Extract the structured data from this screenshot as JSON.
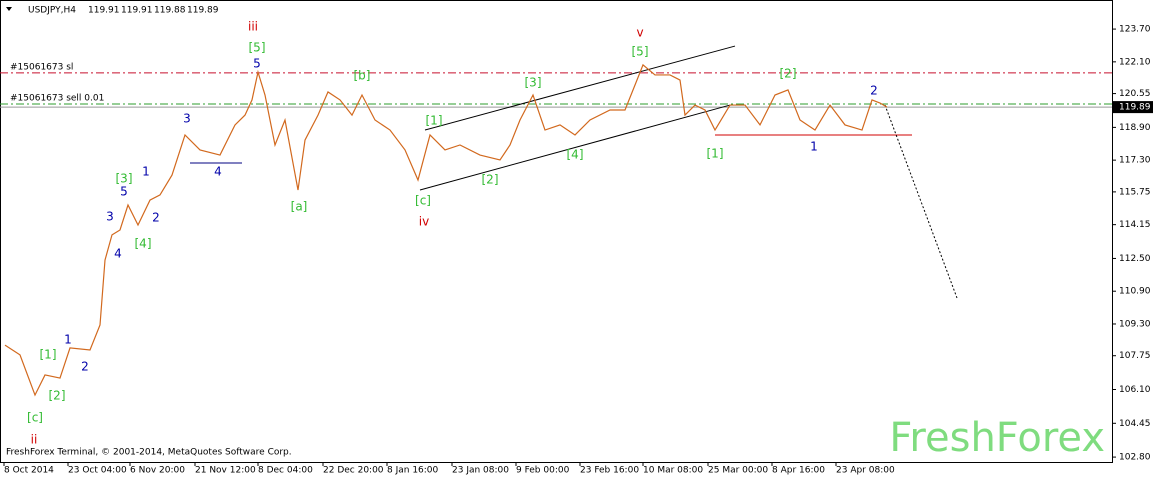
{
  "chart_data": {
    "type": "line",
    "title": "USDJPY,H4",
    "ohlc": [
      119.91,
      119.91,
      119.88,
      119.89
    ],
    "footer": "FreshForex Terminal, © 2001-2014, MetaQuotes Software Corp.",
    "watermark": "FreshForex",
    "xlim": [
      0,
      1112
    ],
    "ylim": [
      102.56,
      125.12
    ],
    "xticks": [
      {
        "value": 4,
        "label": "8 Oct 2014"
      },
      {
        "value": 68,
        "label": "23 Oct 04:00"
      },
      {
        "value": 130,
        "label": "6 Nov 20:00"
      },
      {
        "value": 195,
        "label": "21 Nov 12:00"
      },
      {
        "value": 258,
        "label": "8 Dec 04:00"
      },
      {
        "value": 323,
        "label": "22 Dec 20:00"
      },
      {
        "value": 387,
        "label": "8 Jan 16:00"
      },
      {
        "value": 452,
        "label": "23 Jan 08:00"
      },
      {
        "value": 516,
        "label": "9 Feb 00:00"
      },
      {
        "value": 580,
        "label": "23 Feb 16:00"
      },
      {
        "value": 643,
        "label": "10 Mar 08:00"
      },
      {
        "value": 708,
        "label": "25 Mar 00:00"
      },
      {
        "value": 772,
        "label": "8 Apr 16:00"
      },
      {
        "value": 836,
        "label": "23 Apr 08:00"
      }
    ],
    "yticks": [
      {
        "value": 102.8,
        "label": "102.80"
      },
      {
        "value": 104.45,
        "label": "104.45"
      },
      {
        "value": 106.1,
        "label": "106.10"
      },
      {
        "value": 107.75,
        "label": "107.75"
      },
      {
        "value": 109.3,
        "label": "109.30"
      },
      {
        "value": 110.9,
        "label": "110.90"
      },
      {
        "value": 112.5,
        "label": "112.50"
      },
      {
        "value": 114.15,
        "label": "114.15"
      },
      {
        "value": 115.75,
        "label": "115.75"
      },
      {
        "value": 117.3,
        "label": "117.30"
      },
      {
        "value": 118.9,
        "label": "118.90"
      },
      {
        "value": 120.55,
        "label": "120.55"
      },
      {
        "value": 122.1,
        "label": "122.10"
      },
      {
        "value": 123.7,
        "label": "123.70"
      }
    ],
    "last_price": 119.89,
    "series": [
      {
        "color": "#d2691e",
        "x": [
          5,
          20,
          35,
          45,
          60,
          70,
          90,
          100,
          105,
          112,
          120,
          128,
          138,
          150,
          160,
          172,
          185,
          200,
          220,
          235,
          245,
          252,
          258,
          265,
          275,
          285,
          298,
          305,
          318,
          328,
          340,
          352,
          362,
          375,
          390,
          405,
          418,
          430,
          445,
          460,
          480,
          500,
          510,
          520,
          533,
          545,
          560,
          575,
          590,
          610,
          625,
          635,
          643,
          655,
          670,
          680,
          685,
          695,
          705,
          715,
          730,
          745,
          760,
          775,
          788,
          800,
          815,
          830,
          845,
          862,
          872,
          880,
          887
        ],
        "values": [
          108.27,
          107.79,
          105.83,
          106.81,
          106.66,
          108.13,
          108.03,
          109.25,
          112.42,
          113.65,
          113.89,
          115.11,
          114.13,
          115.35,
          115.6,
          116.57,
          118.53,
          117.8,
          117.55,
          119.02,
          119.5,
          120.24,
          121.6,
          120.48,
          118.04,
          119.26,
          115.84,
          118.28,
          119.5,
          120.63,
          120.24,
          119.5,
          120.48,
          119.26,
          118.77,
          117.8,
          116.33,
          118.53,
          117.8,
          118.04,
          117.55,
          117.31,
          118.04,
          119.26,
          120.48,
          118.77,
          119.02,
          118.53,
          119.26,
          119.75,
          119.75,
          120.97,
          121.95,
          121.46,
          121.46,
          121.21,
          119.5,
          119.99,
          119.75,
          118.77,
          119.99,
          119.99,
          119.02,
          120.48,
          120.73,
          119.26,
          118.77,
          119.99,
          119.02,
          118.77,
          120.24,
          120.09,
          119.89
        ]
      }
    ],
    "levels": [
      {
        "label": "#15061673 sl",
        "value": 121.56,
        "color": "#c8102e"
      },
      {
        "label": "#15061673 sell 0.01",
        "value": 120.04,
        "color": "#2e9e2e"
      }
    ],
    "trend_lines": [
      {
        "x": [
          425,
          735
        ],
        "y": [
          118.77,
          122.87
        ],
        "color": "#000000",
        "style": "solid"
      },
      {
        "x": [
          420,
          730
        ],
        "y": [
          115.84,
          119.99
        ],
        "color": "#000000",
        "style": "solid"
      },
      {
        "x": [
          715,
          912
        ],
        "y": [
          118.53,
          118.53
        ],
        "color": "#d00000",
        "style": "solid"
      },
      {
        "x": [
          190,
          242
        ],
        "y": [
          117.16,
          117.16
        ],
        "color": "#000080",
        "style": "solid"
      },
      {
        "x": [
          885,
          957
        ],
        "y": [
          119.99,
          110.57
        ],
        "color": "#000000",
        "style": "dotted"
      }
    ],
    "annotations": [
      {
        "text": "ii",
        "x": 34,
        "y": 103.64,
        "color": "#d00000"
      },
      {
        "text": "[c]",
        "x": 35,
        "y": 104.71,
        "color": "#33bb33"
      },
      {
        "text": "[2]",
        "x": 57,
        "y": 105.78,
        "color": "#33bb33"
      },
      {
        "text": "[1]",
        "x": 48,
        "y": 107.79,
        "color": "#33bb33"
      },
      {
        "text": "1",
        "x": 68,
        "y": 108.52,
        "color": "#0000aa"
      },
      {
        "text": "2",
        "x": 85,
        "y": 107.2,
        "color": "#0000aa"
      },
      {
        "text": "4",
        "x": 118,
        "y": 112.72,
        "color": "#0000aa"
      },
      {
        "text": "[4]",
        "x": 143,
        "y": 113.21,
        "color": "#33bb33"
      },
      {
        "text": "3",
        "x": 110,
        "y": 114.52,
        "color": "#0000aa"
      },
      {
        "text": "[3]",
        "x": 124,
        "y": 116.38,
        "color": "#33bb33"
      },
      {
        "text": "5",
        "x": 124,
        "y": 115.75,
        "color": "#0000aa"
      },
      {
        "text": "1",
        "x": 146,
        "y": 116.72,
        "color": "#0000aa"
      },
      {
        "text": "2",
        "x": 156,
        "y": 114.48,
        "color": "#0000aa"
      },
      {
        "text": "3",
        "x": 187,
        "y": 119.31,
        "color": "#0000aa"
      },
      {
        "text": "4",
        "x": 218,
        "y": 116.72,
        "color": "#0000aa"
      },
      {
        "text": "iii",
        "x": 253,
        "y": 123.8,
        "color": "#d00000"
      },
      {
        "text": "[5]",
        "x": 257,
        "y": 122.78,
        "color": "#33bb33"
      },
      {
        "text": "5",
        "x": 257,
        "y": 121.99,
        "color": "#0000aa"
      },
      {
        "text": "[a]",
        "x": 299,
        "y": 115.01,
        "color": "#33bb33"
      },
      {
        "text": "[b]",
        "x": 362,
        "y": 121.41,
        "color": "#33bb33"
      },
      {
        "text": "[c]",
        "x": 423,
        "y": 115.31,
        "color": "#33bb33"
      },
      {
        "text": "iv",
        "x": 424,
        "y": 114.28,
        "color": "#d00000"
      },
      {
        "text": "[1]",
        "x": 434,
        "y": 119.21,
        "color": "#33bb33"
      },
      {
        "text": "[2]",
        "x": 490,
        "y": 116.33,
        "color": "#33bb33"
      },
      {
        "text": "[3]",
        "x": 533,
        "y": 121.07,
        "color": "#33bb33"
      },
      {
        "text": "[4]",
        "x": 575,
        "y": 117.55,
        "color": "#33bb33"
      },
      {
        "text": "v",
        "x": 640,
        "y": 123.51,
        "color": "#d00000"
      },
      {
        "text": "[5]",
        "x": 640,
        "y": 122.58,
        "color": "#33bb33"
      },
      {
        "text": "[1]",
        "x": 715,
        "y": 117.6,
        "color": "#33bb33"
      },
      {
        "text": "[2]",
        "x": 788,
        "y": 121.51,
        "color": "#33bb33"
      },
      {
        "text": "1",
        "x": 814,
        "y": 117.94,
        "color": "#0000aa"
      },
      {
        "text": "2",
        "x": 874,
        "y": 120.68,
        "color": "#0000aa"
      }
    ]
  }
}
